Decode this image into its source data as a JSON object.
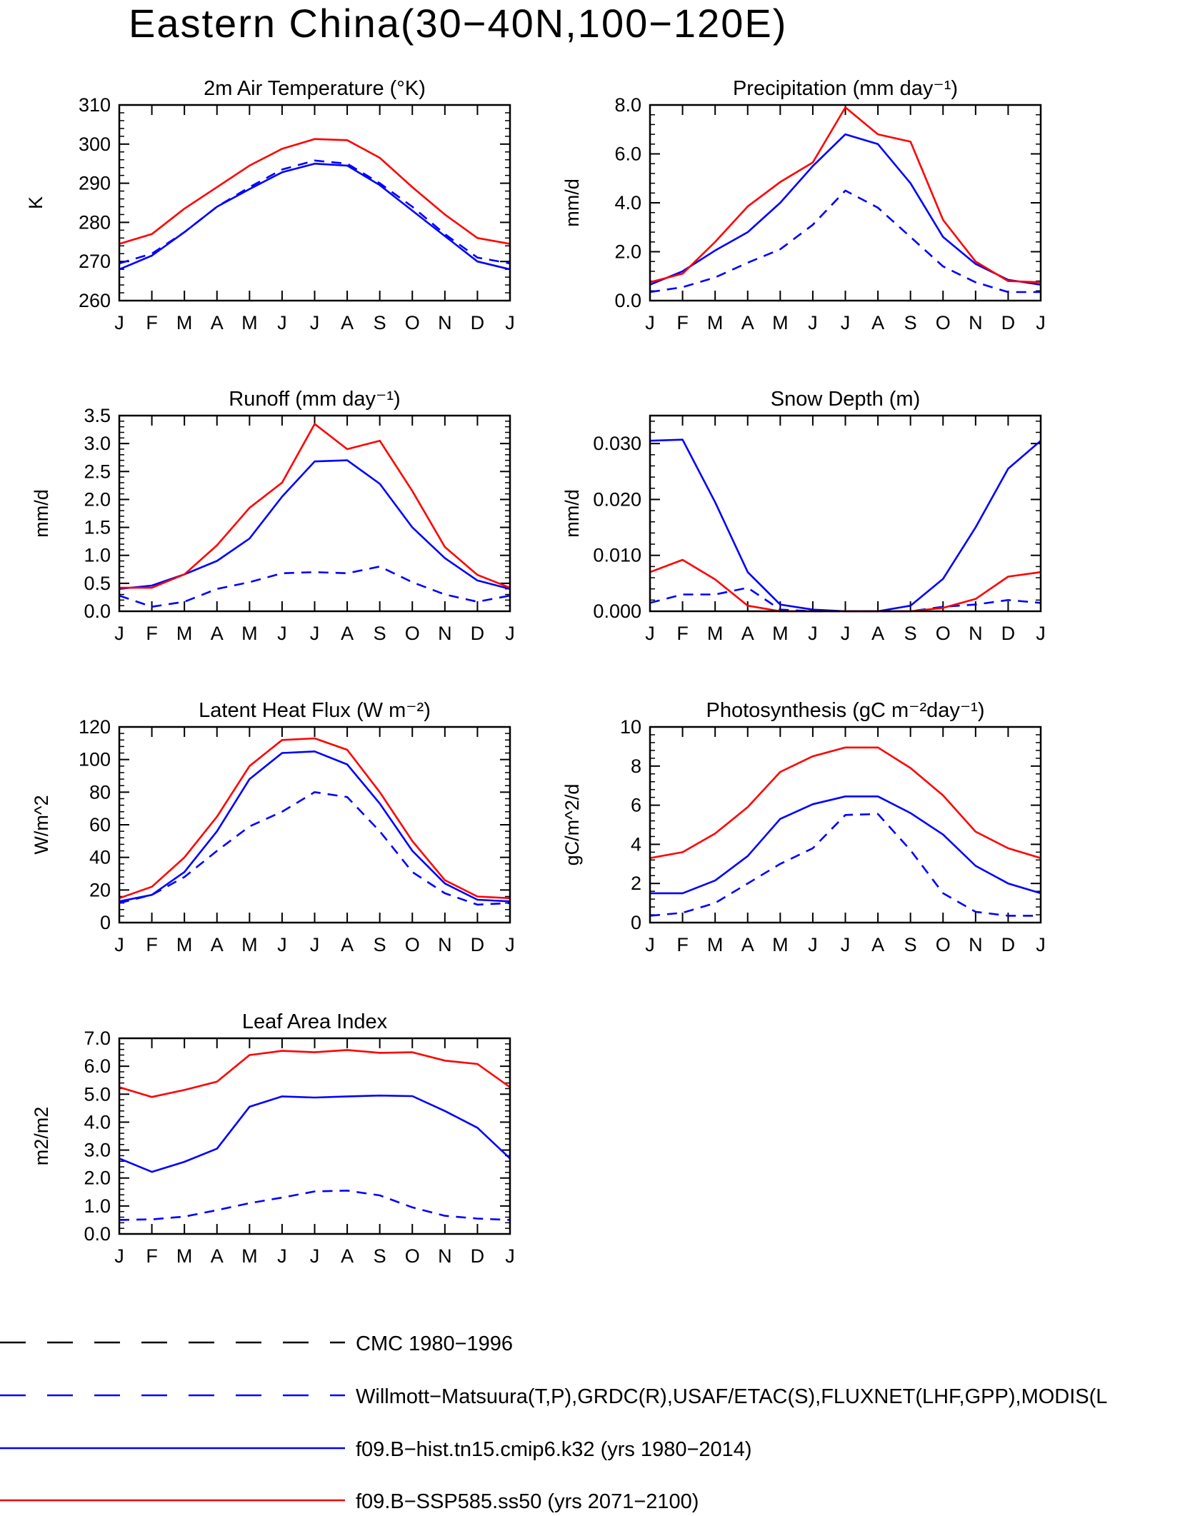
{
  "title": "Eastern China(30−40N,100−120E)",
  "colors": {
    "obs1": "#000000",
    "obs2": "#0000ff",
    "hist": "#0000ff",
    "ssp": "#ff0000"
  },
  "months": [
    "J",
    "F",
    "M",
    "A",
    "M",
    "J",
    "J",
    "A",
    "S",
    "O",
    "N",
    "D",
    "J"
  ],
  "legend": [
    {
      "label": "CMC 1980−1996",
      "color": "#000000",
      "dash": true
    },
    {
      "label": "Willmott−Matsuura(T,P),GRDC(R),USAF/ETAC(S),FLUXNET(LHF,GPP),MODIS(L",
      "color": "#0000ff",
      "dash": true
    },
    {
      "label": "f09.B−hist.tn15.cmip6.k32 (yrs 1980−2014)",
      "color": "#0000ff",
      "dash": false
    },
    {
      "label": "f09.B−SSP585.ss50 (yrs 2071−2100)",
      "color": "#ff0000",
      "dash": false
    }
  ],
  "chart_data": [
    {
      "type": "line",
      "title": "2m Air Temperature (°K)",
      "ylabel": "K",
      "ylim": [
        260,
        310
      ],
      "yticks": [
        260,
        270,
        280,
        290,
        300,
        310
      ],
      "ytick_labels": [
        "260",
        "270",
        "280",
        "290",
        "300",
        "310"
      ],
      "series": [
        {
          "key": "obs",
          "values": [
            269.5,
            272.0,
            277.5,
            284.0,
            289.0,
            293.5,
            295.8,
            295.0,
            290.0,
            284.0,
            277.0,
            271.0,
            269.5
          ]
        },
        {
          "key": "hist",
          "values": [
            268.0,
            271.5,
            277.5,
            284.0,
            288.5,
            292.8,
            295.0,
            294.5,
            289.5,
            283.0,
            276.5,
            270.0,
            268.0
          ]
        },
        {
          "key": "ssp",
          "values": [
            274.5,
            277.0,
            283.5,
            289.0,
            294.5,
            298.8,
            301.3,
            301.0,
            296.5,
            289.0,
            282.0,
            276.0,
            274.5
          ]
        }
      ]
    },
    {
      "type": "line",
      "title": "Precipitation (mm day⁻¹)",
      "ylabel": "mm/d",
      "ylim": [
        0,
        8
      ],
      "yticks": [
        0,
        2,
        4,
        6,
        8
      ],
      "ytick_labels": [
        "0.0",
        "2.0",
        "4.0",
        "6.0",
        "8.0"
      ],
      "series": [
        {
          "key": "obs",
          "values": [
            0.35,
            0.55,
            0.95,
            1.55,
            2.1,
            3.1,
            4.5,
            3.8,
            2.6,
            1.4,
            0.75,
            0.35,
            0.35
          ]
        },
        {
          "key": "hist",
          "values": [
            0.65,
            1.2,
            2.05,
            2.8,
            4.0,
            5.5,
            6.8,
            6.4,
            4.8,
            2.6,
            1.5,
            0.85,
            0.65
          ]
        },
        {
          "key": "ssp",
          "values": [
            0.75,
            1.1,
            2.4,
            3.85,
            4.85,
            5.65,
            7.9,
            6.8,
            6.5,
            3.3,
            1.6,
            0.8,
            0.75
          ]
        }
      ]
    },
    {
      "type": "line",
      "title": "Runoff (mm day⁻¹)",
      "ylabel": "mm/d",
      "ylim": [
        0,
        3.5
      ],
      "yticks": [
        0,
        0.5,
        1,
        1.5,
        2,
        2.5,
        3,
        3.5
      ],
      "ytick_labels": [
        "0.0",
        "0.5",
        "1.0",
        "1.5",
        "2.0",
        "2.5",
        "3.0",
        "3.5"
      ],
      "series": [
        {
          "key": "obs",
          "values": [
            0.28,
            0.08,
            0.17,
            0.4,
            0.52,
            0.68,
            0.7,
            0.68,
            0.8,
            0.52,
            0.3,
            0.17,
            0.28
          ]
        },
        {
          "key": "hist",
          "values": [
            0.4,
            0.46,
            0.66,
            0.9,
            1.3,
            2.05,
            2.68,
            2.7,
            2.28,
            1.5,
            0.95,
            0.55,
            0.4
          ]
        },
        {
          "key": "ssp",
          "values": [
            0.42,
            0.42,
            0.66,
            1.18,
            1.85,
            2.3,
            3.35,
            2.9,
            3.05,
            2.15,
            1.15,
            0.65,
            0.42
          ]
        }
      ]
    },
    {
      "type": "line",
      "title": "Snow Depth (m)",
      "ylabel": "mm/d",
      "ylim": [
        0,
        0.035
      ],
      "yticks": [
        0,
        0.01,
        0.02,
        0.03
      ],
      "ytick_labels": [
        "0.000",
        "0.010",
        "0.020",
        "0.030"
      ],
      "series": [
        {
          "key": "obs",
          "values": [
            0.0015,
            0.003,
            0.003,
            0.0042,
            0.0003,
            0.0,
            0.0,
            0.0,
            0.0,
            0.0008,
            0.0012,
            0.002,
            0.0015
          ]
        },
        {
          "key": "hist",
          "values": [
            0.0305,
            0.0307,
            0.0195,
            0.007,
            0.0012,
            0.0003,
            0.0,
            0.0,
            0.001,
            0.0058,
            0.015,
            0.0255,
            0.0305
          ]
        },
        {
          "key": "ssp",
          "values": [
            0.007,
            0.0092,
            0.0057,
            0.001,
            0.0,
            0.0,
            0.0,
            0.0,
            0.0,
            0.0006,
            0.0022,
            0.0062,
            0.007
          ]
        }
      ]
    },
    {
      "type": "line",
      "title": "Latent Heat Flux (W m⁻²)",
      "ylabel": "W/m^2",
      "ylim": [
        0,
        120
      ],
      "yticks": [
        0,
        20,
        40,
        60,
        80,
        100,
        120
      ],
      "ytick_labels": [
        "0",
        "20",
        "40",
        "60",
        "80",
        "100",
        "120"
      ],
      "series": [
        {
          "key": "obs",
          "values": [
            12,
            17,
            28,
            44,
            59,
            68,
            80,
            77,
            56,
            31,
            18,
            11,
            12
          ]
        },
        {
          "key": "hist",
          "values": [
            13,
            17,
            31,
            56,
            88,
            104,
            105,
            97,
            73,
            44,
            24,
            14,
            13
          ]
        },
        {
          "key": "ssp",
          "values": [
            15,
            22,
            40,
            65,
            96,
            112,
            113,
            106,
            80,
            50,
            26,
            16,
            15
          ]
        }
      ]
    },
    {
      "type": "line",
      "title": "Photosynthesis (gC m⁻²day⁻¹)",
      "ylabel": "gC/m^2/d",
      "ylim": [
        0,
        10
      ],
      "yticks": [
        0,
        2,
        4,
        6,
        8,
        10
      ],
      "ytick_labels": [
        "0",
        "2",
        "4",
        "6",
        "8",
        "10"
      ],
      "series": [
        {
          "key": "obs",
          "values": [
            0.35,
            0.5,
            1.0,
            2.0,
            3.0,
            3.8,
            5.5,
            5.55,
            3.7,
            1.5,
            0.55,
            0.35,
            0.35
          ]
        },
        {
          "key": "hist",
          "values": [
            1.5,
            1.5,
            2.15,
            3.4,
            5.3,
            6.05,
            6.45,
            6.45,
            5.6,
            4.5,
            2.9,
            2.0,
            1.5
          ]
        },
        {
          "key": "ssp",
          "values": [
            3.3,
            3.6,
            4.55,
            5.9,
            7.7,
            8.5,
            8.95,
            8.95,
            7.9,
            6.5,
            4.65,
            3.8,
            3.3
          ]
        }
      ]
    },
    {
      "type": "line",
      "title": "Leaf Area Index",
      "ylabel": "m2/m2",
      "ylim": [
        0,
        7
      ],
      "yticks": [
        0,
        1,
        2,
        3,
        4,
        5,
        6,
        7
      ],
      "ytick_labels": [
        "0.0",
        "1.0",
        "2.0",
        "3.0",
        "4.0",
        "5.0",
        "6.0",
        "7.0"
      ],
      "series": [
        {
          "key": "obs",
          "values": [
            0.5,
            0.52,
            0.62,
            0.85,
            1.1,
            1.3,
            1.52,
            1.55,
            1.38,
            0.95,
            0.65,
            0.55,
            0.5
          ]
        },
        {
          "key": "hist",
          "values": [
            2.7,
            2.22,
            2.58,
            3.05,
            4.55,
            4.92,
            4.88,
            4.92,
            4.95,
            4.93,
            4.4,
            3.8,
            2.7
          ]
        },
        {
          "key": "ssp",
          "values": [
            5.25,
            4.9,
            5.15,
            5.45,
            6.4,
            6.55,
            6.5,
            6.58,
            6.48,
            6.5,
            6.2,
            6.08,
            5.25
          ]
        }
      ]
    }
  ]
}
